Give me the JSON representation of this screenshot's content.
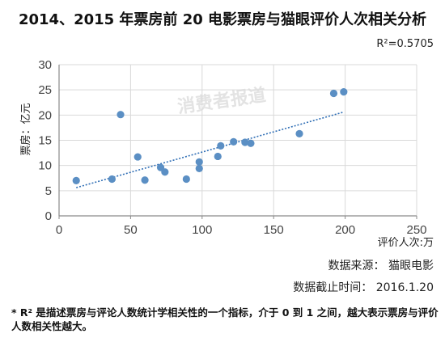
{
  "chart_data": {
    "type": "scatter",
    "title": "2014、2015 年票房前 20 电影票房与猫眼评价人次相关分析",
    "r2_label": "R²=0.5705",
    "ylabel": "票房：亿元",
    "xlabel": "评价人次:万",
    "source": "数据来源：  猫眼电影",
    "cutoff": "数据截止时间：  2016.1.20",
    "watermark": "消费者报道",
    "footnote": "* R² 是描述票房与评论人数统计学相关性的一个指标，介于 0 到 1 之间，越大表示票房与评价人数相关性越大。",
    "xlim": [
      0,
      250
    ],
    "ylim": [
      0,
      30
    ],
    "xticks": [
      "0",
      "50",
      "100",
      "150",
      "200",
      "250"
    ],
    "yticks": [
      "0",
      "5",
      "10",
      "15",
      "20",
      "25",
      "30"
    ],
    "grid": true,
    "points": [
      {
        "x": 12,
        "y": 7
      },
      {
        "x": 37,
        "y": 7.3
      },
      {
        "x": 43,
        "y": 20.1
      },
      {
        "x": 55,
        "y": 11.7
      },
      {
        "x": 60,
        "y": 7.1
      },
      {
        "x": 71,
        "y": 9.6
      },
      {
        "x": 74,
        "y": 8.7
      },
      {
        "x": 89,
        "y": 7.3
      },
      {
        "x": 98,
        "y": 10.7
      },
      {
        "x": 98,
        "y": 9.4
      },
      {
        "x": 111,
        "y": 11.8
      },
      {
        "x": 113,
        "y": 13.9
      },
      {
        "x": 122,
        "y": 14.7
      },
      {
        "x": 130,
        "y": 14.6
      },
      {
        "x": 134,
        "y": 14.4
      },
      {
        "x": 168,
        "y": 16.3
      },
      {
        "x": 192,
        "y": 24.3
      },
      {
        "x": 199,
        "y": 24.6
      }
    ],
    "trendline": {
      "x": [
        12,
        199
      ],
      "y": [
        5.6,
        20.6
      ]
    },
    "colors": {
      "point": "#5b8fc4",
      "trend": "#2f6eb5",
      "grid": "#d9d9d9",
      "axis": "#8a8a8a",
      "watermark": "#e3e3e3"
    }
  }
}
